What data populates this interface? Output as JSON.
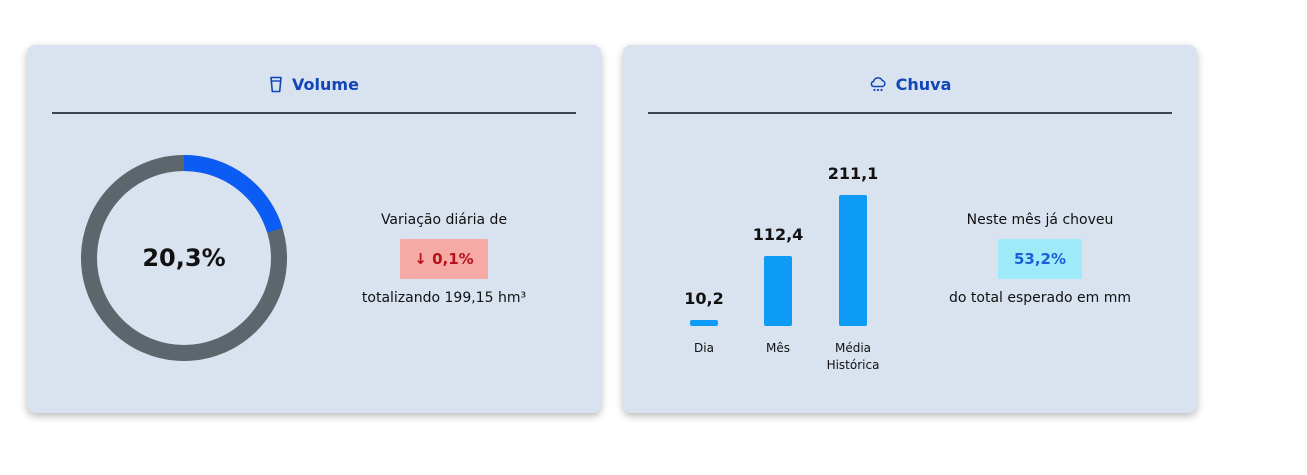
{
  "volume": {
    "title": "Volume",
    "icon": "cup-icon",
    "percent_label": "20,3%",
    "percent_value": 20.3,
    "colors": {
      "fill": "#0a5cf5",
      "track": "#5c666c"
    },
    "variation_label": "Variação diária de",
    "variation_value": "↓ 0,1%",
    "total_label": "totalizando 199,15 hm³"
  },
  "chuva": {
    "title": "Chuva",
    "icon": "cloud-rain-icon",
    "chart_data": {
      "type": "bar",
      "categories": [
        "Dia",
        "Mês",
        "Média Histórica"
      ],
      "values": [
        10.2,
        112.4,
        211.1
      ],
      "value_labels": [
        "10,2",
        "112,4",
        "211,1"
      ],
      "category_labels": [
        [
          "Dia"
        ],
        [
          "Mês"
        ],
        [
          "Média",
          "Histórica"
        ]
      ],
      "color": "#0d9bf5"
    },
    "rain_label": "Neste mês já choveu",
    "rain_value": "53,2%",
    "expected_label": "do total esperado em mm"
  }
}
